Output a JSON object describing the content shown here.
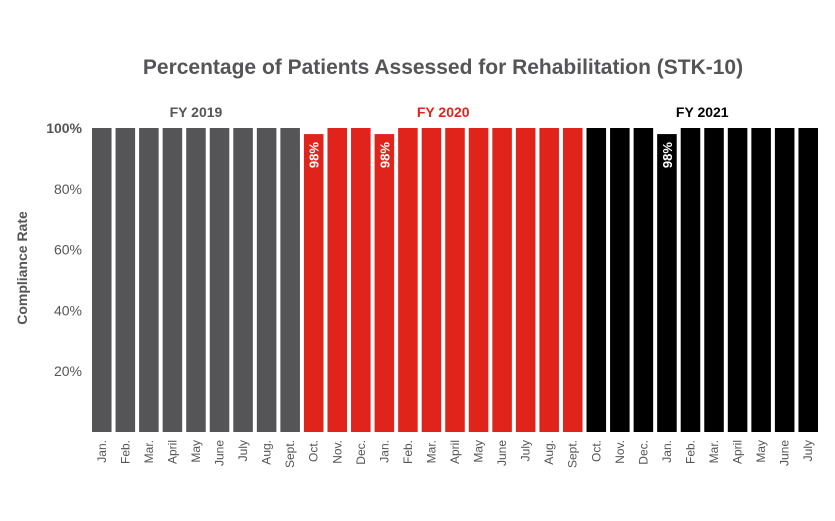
{
  "chart_data": {
    "type": "bar",
    "title": "Percentage of Patients Assessed for Rehabilitation (STK-10)",
    "ylabel": "Compliance Rate",
    "xlabel": "",
    "ylim": [
      0,
      100
    ],
    "yticks": [
      "20%",
      "40%",
      "60%",
      "80%",
      "100%"
    ],
    "grid": false,
    "categories": [
      "Jan.",
      "Feb.",
      "Mar.",
      "April",
      "May",
      "June",
      "July",
      "Aug.",
      "Sept.",
      "Oct.",
      "Nov.",
      "Dec.",
      "Jan.",
      "Feb.",
      "Mar.",
      "April",
      "May",
      "June",
      "July",
      "Aug.",
      "Sept.",
      "Oct.",
      "Nov.",
      "Dec.",
      "Jan.",
      "Feb.",
      "Mar.",
      "April",
      "May",
      "June",
      "July"
    ],
    "values": [
      100,
      100,
      100,
      100,
      100,
      100,
      100,
      100,
      100,
      98,
      100,
      100,
      98,
      100,
      100,
      100,
      100,
      100,
      100,
      100,
      100,
      100,
      100,
      100,
      98,
      100,
      100,
      100,
      100,
      100,
      100
    ],
    "groups": [
      {
        "label": "FY 2019",
        "start": 0,
        "count": 9,
        "color": "#555558"
      },
      {
        "label": "FY 2020",
        "start": 9,
        "count": 12,
        "color": "#e0241b"
      },
      {
        "label": "FY 2021",
        "start": 21,
        "count": 10,
        "color": "#000000"
      }
    ],
    "data_labels": [
      {
        "index": 9,
        "text": "98%"
      },
      {
        "index": 12,
        "text": "98%"
      },
      {
        "index": 24,
        "text": "98%"
      }
    ]
  }
}
